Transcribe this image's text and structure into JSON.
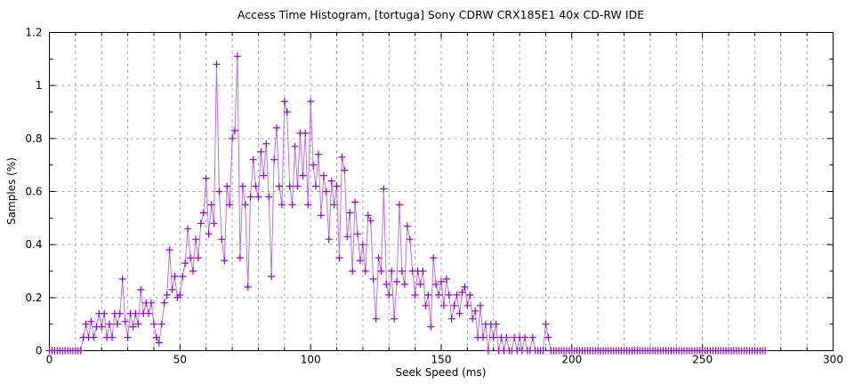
{
  "window": {
    "title": "Access Time Histogram, [tortuga] Sony CDRW CRX185E1 40x CD-RW IDE"
  },
  "colors": {
    "background": "#ffffff",
    "axis": "#000000",
    "grid": "#9b9b9b",
    "line": "#b973e0",
    "marker": "#9400d3",
    "text": "#000000"
  },
  "chart_data": {
    "type": "line",
    "marker": "plus",
    "title": "Access Time Histogram, [tortuga] Sony CDRW CRX185E1 40x CD-RW IDE",
    "xlabel": "Seek Speed (ms)",
    "ylabel": "Samples (%)",
    "xlim": [
      0,
      300
    ],
    "ylim": [
      0,
      1.2
    ],
    "grid": {
      "style": "dashed",
      "x_step": 10,
      "y_step": 0.2,
      "legend": "none"
    },
    "xticks_major": [
      0,
      50,
      100,
      150,
      200,
      250,
      300
    ],
    "xtick_labels": [
      "0",
      "50",
      "100",
      "150",
      "200",
      "250",
      "300"
    ],
    "xtick_minor_step": 10,
    "yticks_major": [
      0,
      0.2,
      0.4,
      0.6,
      0.8,
      1.0,
      1.2
    ],
    "ytick_labels": [
      "0",
      "0.2",
      "0.4",
      "0.6",
      "0.8",
      "1",
      "1.2"
    ],
    "ytick_minor_step": 0.1,
    "x_start": 0,
    "x_step": 1,
    "values": [
      0,
      0,
      0,
      0,
      0,
      0,
      0,
      0,
      0,
      0,
      0,
      0,
      0,
      0.05,
      0.1,
      0.05,
      0.11,
      0.05,
      0.09,
      0.14,
      0.09,
      0.14,
      0.05,
      0.1,
      0.05,
      0.14,
      0.1,
      0.14,
      0.27,
      0.11,
      0.05,
      0.14,
      0.09,
      0.14,
      0.1,
      0.23,
      0.14,
      0.18,
      0.14,
      0.18,
      0.1,
      0.05,
      0.03,
      0.1,
      0.18,
      0.21,
      0.38,
      0.23,
      0.28,
      0.2,
      0.21,
      0.28,
      0.33,
      0.46,
      0.35,
      0.3,
      0.42,
      0.35,
      0.48,
      0.52,
      0.65,
      0.44,
      0.55,
      0.48,
      1.08,
      0.6,
      0.42,
      0.34,
      0.62,
      0.55,
      0.8,
      0.83,
      1.11,
      0.35,
      0.62,
      0.55,
      0.24,
      0.58,
      0.72,
      0.62,
      0.58,
      0.75,
      0.66,
      0.78,
      0.58,
      0.28,
      0.72,
      0.84,
      0.62,
      0.55,
      0.94,
      0.9,
      0.62,
      0.55,
      0.77,
      0.62,
      0.82,
      0.66,
      0.82,
      0.55,
      0.94,
      0.7,
      0.62,
      0.74,
      0.51,
      0.66,
      0.6,
      0.42,
      0.64,
      0.55,
      0.62,
      0.35,
      0.73,
      0.68,
      0.43,
      0.52,
      0.3,
      0.56,
      0.44,
      0.34,
      0.4,
      0.3,
      0.51,
      0.49,
      0.27,
      0.12,
      0.35,
      0.3,
      0.61,
      0.25,
      0.21,
      0.3,
      0.12,
      0.26,
      0.55,
      0.3,
      0.25,
      0.47,
      0.42,
      0.3,
      0.21,
      0.3,
      0.25,
      0.3,
      0.17,
      0.21,
      0.09,
      0.35,
      0.25,
      0.21,
      0.26,
      0.17,
      0.27,
      0.21,
      0.12,
      0.17,
      0.21,
      0.14,
      0.22,
      0.24,
      0.17,
      0.21,
      0.12,
      0.15,
      0.05,
      0.17,
      0.05,
      0.1,
      0,
      0.1,
      0.05,
      0.1,
      0,
      0.05,
      0,
      0.05,
      0,
      0,
      0.05,
      0,
      0.05,
      0,
      0.05,
      0,
      0,
      0.05,
      0,
      0,
      0,
      0,
      0.1,
      0.05,
      0,
      0,
      0,
      0,
      0,
      0,
      0,
      0,
      0,
      0,
      0,
      0,
      0,
      0,
      0,
      0,
      0,
      0,
      0,
      0,
      0,
      0,
      0,
      0,
      0,
      0,
      0,
      0,
      0,
      0,
      0,
      0,
      0,
      0,
      0,
      0,
      0,
      0,
      0,
      0,
      0,
      0,
      0,
      0,
      0,
      0,
      0,
      0,
      0,
      0,
      0,
      0,
      0,
      0,
      0,
      0,
      0,
      0,
      0,
      0,
      0,
      0,
      0,
      0,
      0,
      0,
      0,
      0,
      0,
      0,
      0,
      0,
      0,
      0,
      0,
      0,
      0,
      0,
      0,
      0,
      0,
      0,
      0
    ]
  }
}
